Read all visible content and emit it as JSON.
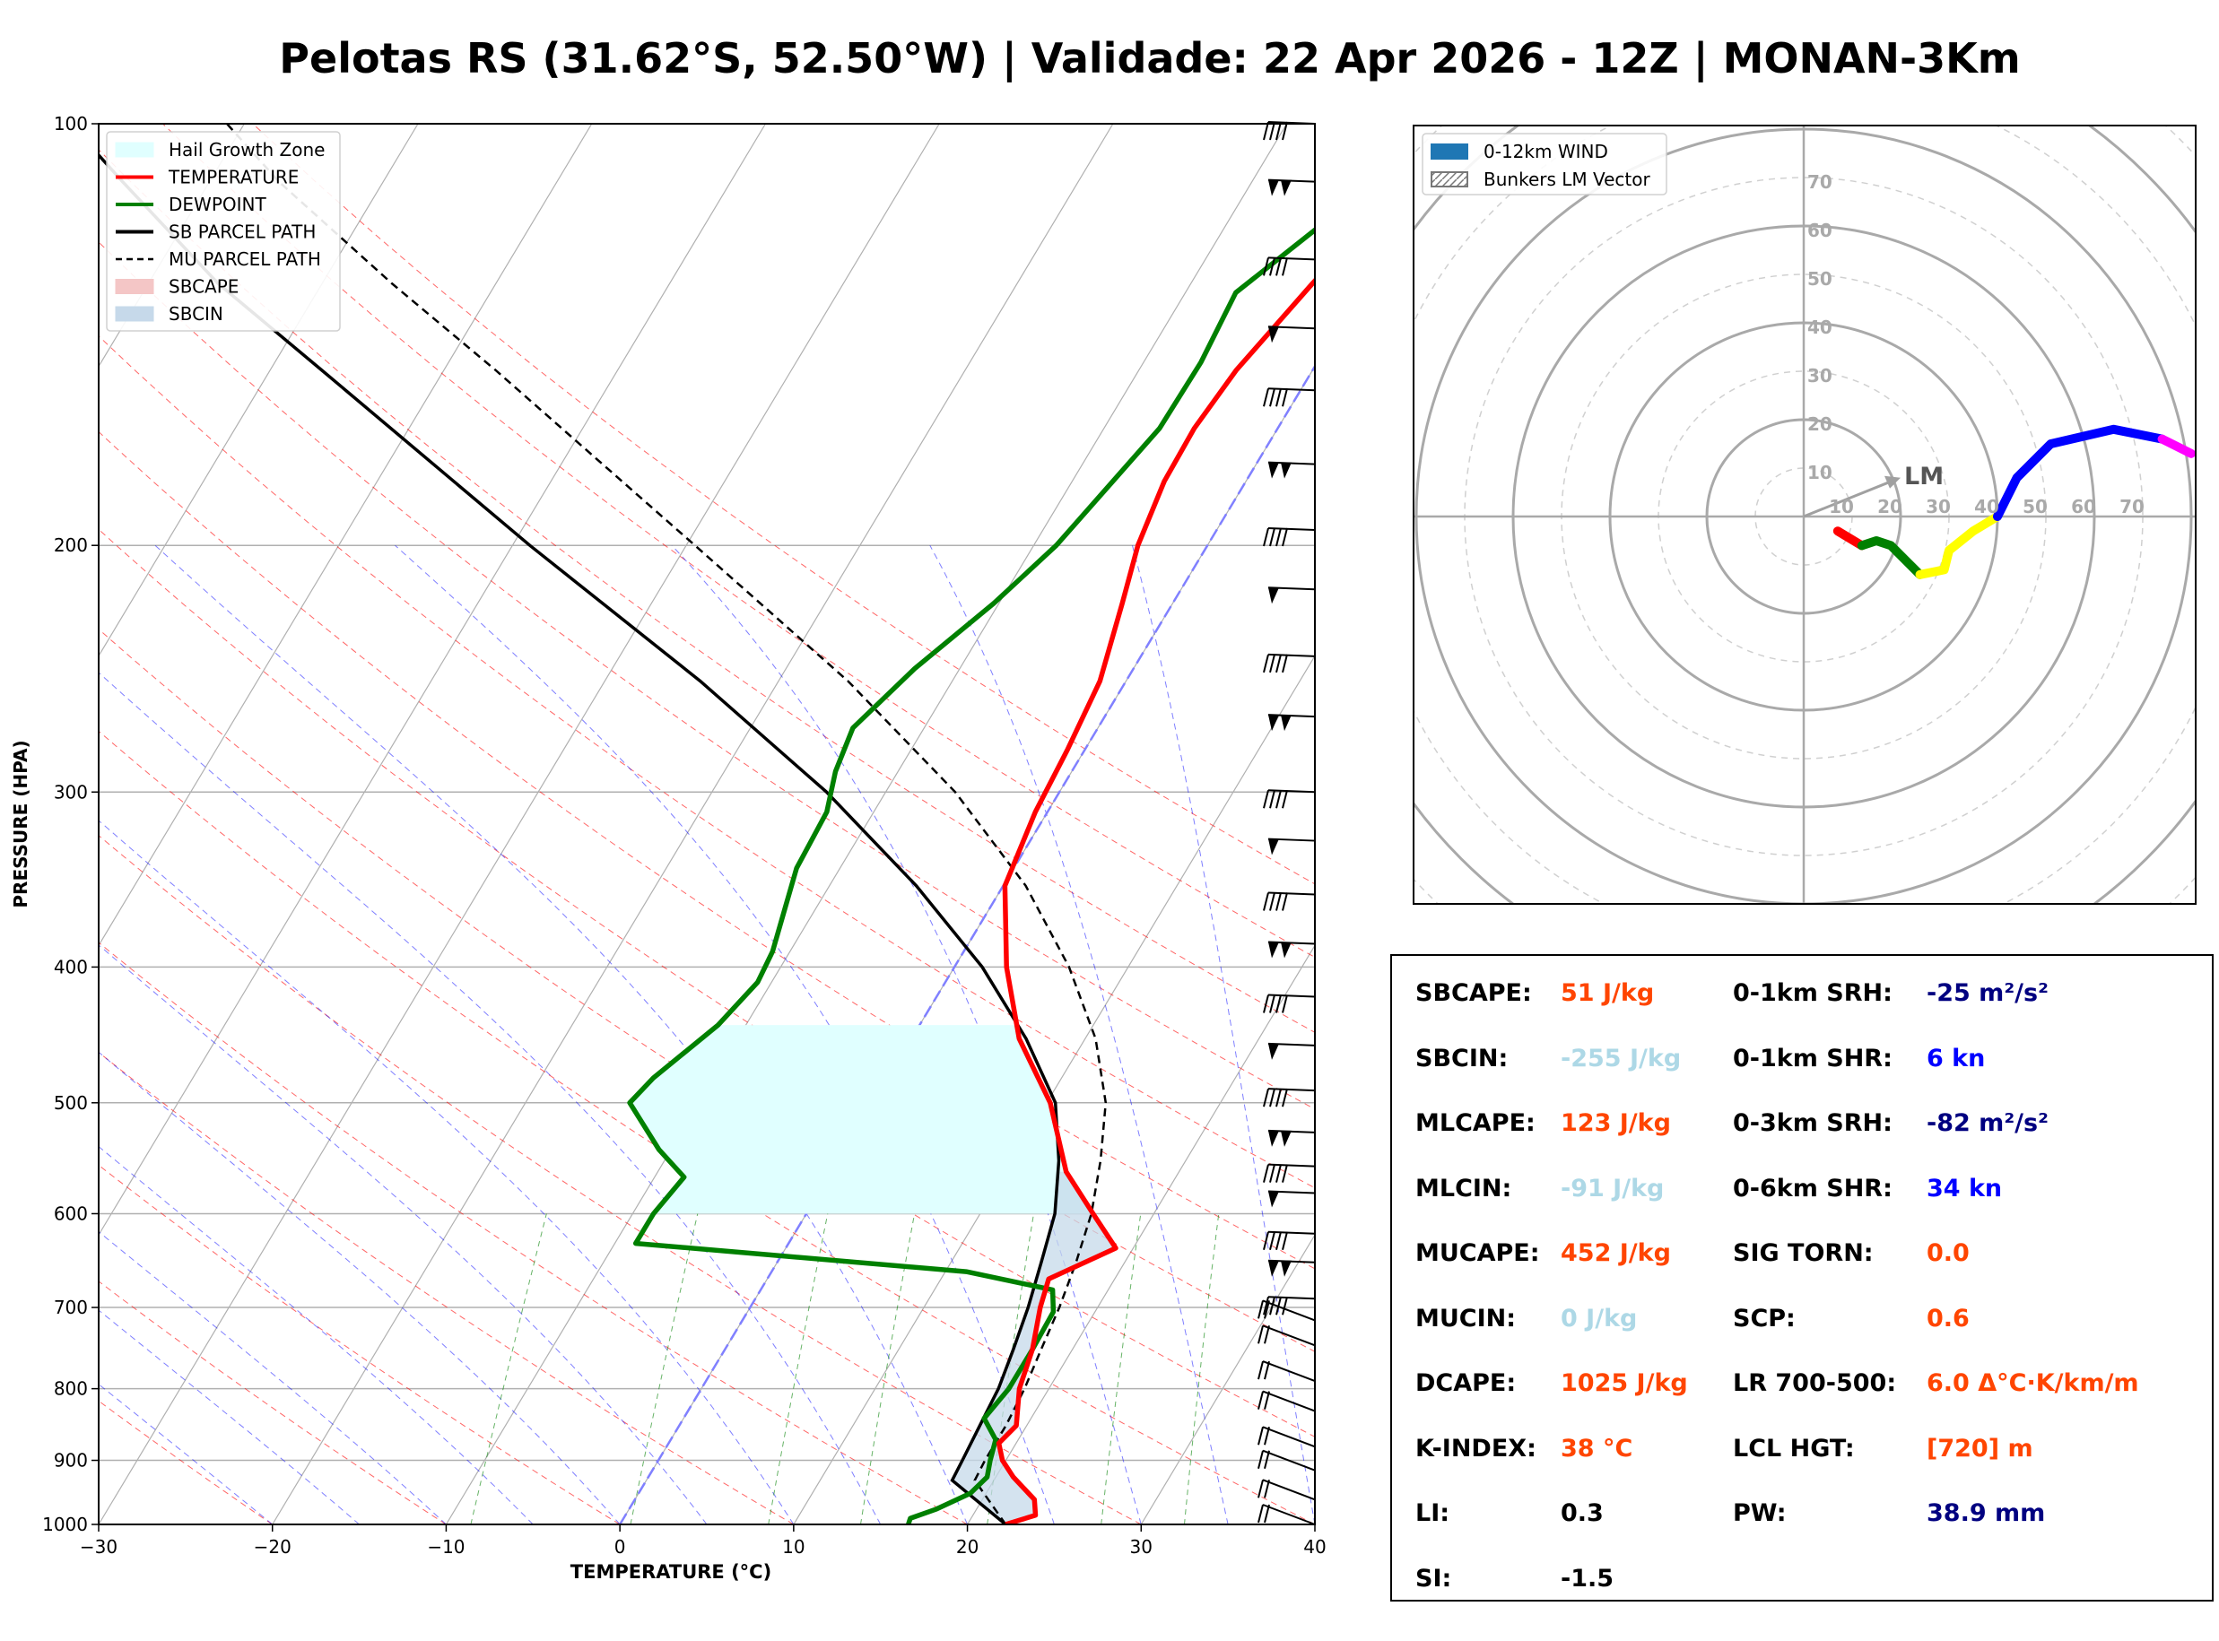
{
  "title": "Pelotas RS (31.62°S, 52.50°W) | Validade: 22 Apr 2026 - 12Z | MONAN-3Km",
  "skewt": {
    "xlabel": "TEMPERATURE (°C)",
    "ylabel": "PRESSURE (HPA)",
    "x_ticks": [
      "−30",
      "−20",
      "−10",
      "0",
      "10",
      "20",
      "30",
      "40"
    ],
    "y_ticks": [
      "100",
      "200",
      "300",
      "400",
      "500",
      "600",
      "700",
      "800",
      "900",
      "1000"
    ],
    "legend": [
      {
        "label": "Hail Growth Zone",
        "color": "#e0ffff",
        "kind": "patch"
      },
      {
        "label": "TEMPERATURE",
        "color": "#ff0000",
        "kind": "line"
      },
      {
        "label": "DEWPOINT",
        "color": "#008000",
        "kind": "line"
      },
      {
        "label": "SB PARCEL PATH",
        "color": "#000000",
        "kind": "line"
      },
      {
        "label": "MU PARCEL PATH",
        "color": "#000000",
        "kind": "dashed"
      },
      {
        "label": "SBCAPE",
        "color": "#f4c6c6",
        "kind": "patch"
      },
      {
        "label": "SBCIN",
        "color": "#c6d9ea",
        "kind": "patch"
      }
    ]
  },
  "hodograph": {
    "legend": [
      {
        "label": "0-12km WIND",
        "color": "#1f77b4",
        "kind": "patch"
      },
      {
        "label": "Bunkers LM Vector",
        "color": "#a0a0a0",
        "kind": "hatch"
      }
    ],
    "ring_labels_v": [
      "10",
      "20",
      "30",
      "40",
      "50",
      "60",
      "70"
    ],
    "ring_labels_h": [
      "10",
      "20",
      "30",
      "40",
      "50",
      "60",
      "70"
    ],
    "lm_label": "LM"
  },
  "parameters": {
    "left": [
      {
        "label": "SBCAPE:",
        "value": "51 J/kg",
        "color": "#ff4500"
      },
      {
        "label": "SBCIN:",
        "value": "-255 J/kg",
        "color": "#add8e6"
      },
      {
        "label": "MLCAPE:",
        "value": "123 J/kg",
        "color": "#ff4500"
      },
      {
        "label": "MLCIN:",
        "value": "-91 J/kg",
        "color": "#add8e6"
      },
      {
        "label": "MUCAPE:",
        "value": "452 J/kg",
        "color": "#ff4500"
      },
      {
        "label": "MUCIN:",
        "value": "0 J/kg",
        "color": "#add8e6"
      },
      {
        "label": "DCAPE:",
        "value": "1025 J/kg",
        "color": "#ff4500"
      },
      {
        "label": "K-INDEX:",
        "value": "38 °C",
        "color": "#ff4500"
      },
      {
        "label": "LI:",
        "value": "0.3",
        "color": "#000000"
      },
      {
        "label": "SI:",
        "value": "-1.5",
        "color": "#000000"
      }
    ],
    "right": [
      {
        "label": "0-1km SRH:",
        "value": "-25 m²/s²",
        "color": "#000080"
      },
      {
        "label": "0-1km SHR:",
        "value": "6 kn",
        "color": "#0000ff"
      },
      {
        "label": "0-3km SRH:",
        "value": "-82 m²/s²",
        "color": "#000080"
      },
      {
        "label": "0-6km SHR:",
        "value": "34 kn",
        "color": "#0000ff"
      },
      {
        "label": "SIG TORN:",
        "value": "0.0",
        "color": "#ff4500"
      },
      {
        "label": "SCP:",
        "value": "0.6",
        "color": "#ff4500"
      },
      {
        "label": "LR 700-500:",
        "value": "6.0 Δ°C·K/km/m",
        "color": "#ff4500"
      },
      {
        "label": "LCL HGT:",
        "value": "[720] m",
        "color": "#ff4500"
      },
      {
        "label": "PW:",
        "value": "38.9 mm",
        "color": "#000080"
      }
    ]
  },
  "chart_data": [
    {
      "type": "line",
      "subtype": "skew-t log-p",
      "xlabel": "TEMPERATURE (°C)",
      "ylabel": "PRESSURE (HPA)",
      "xlim": [
        -30,
        40
      ],
      "ylim": [
        1000,
        100
      ],
      "y_scale": "log",
      "grid": true,
      "legend_position": "upper-left",
      "series": [
        {
          "name": "TEMPERATURE",
          "color": "#ff0000",
          "points": [
            [
              1000,
              22.2
            ],
            [
              985,
              23.6
            ],
            [
              960,
              23.0
            ],
            [
              925,
              21.0
            ],
            [
              900,
              19.8
            ],
            [
              875,
              19.0
            ],
            [
              850,
              19.4
            ],
            [
              800,
              18.3
            ],
            [
              750,
              17.7
            ],
            [
              700,
              16.7
            ],
            [
              668,
              16.2
            ],
            [
              635,
              19.0
            ],
            [
              600,
              16.5
            ],
            [
              560,
              13.5
            ],
            [
              500,
              10.2
            ],
            [
              450,
              6.2
            ],
            [
              400,
              3.0
            ],
            [
              350,
              0.1
            ],
            [
              310,
              -0.7
            ],
            [
              280,
              -1.0
            ],
            [
              250,
              -1.5
            ],
            [
              220,
              -2.9
            ],
            [
              200,
              -4.0
            ],
            [
              180,
              -4.7
            ],
            [
              165,
              -4.8
            ],
            [
              150,
              -4.4
            ],
            [
              130,
              -3.0
            ],
            [
              115,
              -1.6
            ],
            [
              100,
              0.0
            ]
          ]
        },
        {
          "name": "DEWPOINT",
          "color": "#008000",
          "points": [
            [
              1000,
              16.6
            ],
            [
              990,
              16.5
            ],
            [
              975,
              17.7
            ],
            [
              950,
              19.1
            ],
            [
              925,
              19.5
            ],
            [
              900,
              19.1
            ],
            [
              870,
              18.7
            ],
            [
              840,
              17.3
            ],
            [
              800,
              17.7
            ],
            [
              750,
              17.7
            ],
            [
              705,
              17.6
            ],
            [
              680,
              16.8
            ],
            [
              660,
              11.2
            ],
            [
              630,
              -8.8
            ],
            [
              600,
              -8.8
            ],
            [
              565,
              -8.3
            ],
            [
              540,
              -10.7
            ],
            [
              500,
              -14.0
            ],
            [
              480,
              -13.5
            ],
            [
              440,
              -11.6
            ],
            [
              410,
              -10.8
            ],
            [
              390,
              -11.0
            ],
            [
              340,
              -12.5
            ],
            [
              310,
              -12.7
            ],
            [
              290,
              -13.6
            ],
            [
              270,
              -14.1
            ],
            [
              245,
              -12.6
            ],
            [
              220,
              -10.3
            ],
            [
              200,
              -8.7
            ],
            [
              165,
              -6.8
            ],
            [
              148,
              -6.7
            ],
            [
              132,
              -7.1
            ],
            [
              118,
              -4.5
            ],
            [
              100,
              1.0
            ]
          ]
        },
        {
          "name": "SB PARCEL PATH",
          "color": "#000000",
          "style": "solid",
          "points": [
            [
              1000,
              22.2
            ],
            [
              930,
              17.6
            ],
            [
              900,
              17.5
            ],
            [
              850,
              17.3
            ],
            [
              800,
              17.1
            ],
            [
              750,
              16.6
            ],
            [
              700,
              16.0
            ],
            [
              650,
              15.2
            ],
            [
              600,
              14.3
            ],
            [
              550,
              12.7
            ],
            [
              500,
              10.5
            ],
            [
              450,
              6.6
            ],
            [
              400,
              1.6
            ],
            [
              350,
              -5.0
            ],
            [
              300,
              -13.4
            ],
            [
              250,
              -24.5
            ],
            [
              200,
              -39.0
            ],
            [
              150,
              -57.0
            ],
            [
              130,
              -66.0
            ],
            [
              110,
              -75.0
            ],
            [
              100,
              -80.0
            ]
          ]
        },
        {
          "name": "MU PARCEL PATH",
          "color": "#000000",
          "style": "dashed",
          "points": [
            [
              1000,
              22.2
            ],
            [
              930,
              18.9
            ],
            [
              900,
              18.8
            ],
            [
              850,
              18.8
            ],
            [
              800,
              18.6
            ],
            [
              750,
              18.2
            ],
            [
              700,
              17.8
            ],
            [
              650,
              17.2
            ],
            [
              600,
              16.4
            ],
            [
              550,
              15.1
            ],
            [
              500,
              13.4
            ],
            [
              450,
              10.6
            ],
            [
              400,
              6.6
            ],
            [
              350,
              1.3
            ],
            [
              300,
              -6.0
            ],
            [
              250,
              -16.0
            ],
            [
              200,
              -29.5
            ],
            [
              150,
              -47.0
            ],
            [
              130,
              -56.0
            ],
            [
              110,
              -66.0
            ],
            [
              100,
              -71.0
            ]
          ]
        }
      ],
      "hail_growth_zone_hpa": [
        440,
        600
      ],
      "barb_levels_hpa": [
        100,
        110,
        125,
        140,
        155,
        175,
        195,
        215,
        240,
        265,
        300,
        325,
        355,
        385,
        420,
        455,
        490,
        525,
        555,
        580,
        620,
        650,
        690,
        715,
        745,
        790,
        830,
        880,
        915,
        960,
        1000
      ]
    },
    {
      "type": "line",
      "subtype": "hodograph",
      "units": "kn",
      "ring_max": 80,
      "series": [
        {
          "name": "0-1km",
          "color": "#ff0000",
          "points": [
            [
              7,
              -3
            ],
            [
              12,
              -6
            ]
          ]
        },
        {
          "name": "1-3km",
          "color": "#008000",
          "points": [
            [
              12,
              -6
            ],
            [
              15,
              -5
            ],
            [
              18,
              -6
            ],
            [
              21,
              -9
            ],
            [
              24,
              -12
            ]
          ]
        },
        {
          "name": "3-6km",
          "color": "#ffff00",
          "points": [
            [
              24,
              -12
            ],
            [
              29,
              -11
            ],
            [
              30,
              -7
            ],
            [
              35,
              -3
            ],
            [
              40,
              0
            ]
          ]
        },
        {
          "name": "6-9km",
          "color": "#0000ff",
          "points": [
            [
              40,
              0
            ],
            [
              44,
              8
            ],
            [
              51,
              15
            ],
            [
              64,
              18
            ],
            [
              74,
              16
            ]
          ]
        },
        {
          "name": "9-12km",
          "color": "#ff00ff",
          "points": [
            [
              74,
              16
            ],
            [
              80,
              13
            ]
          ]
        }
      ],
      "bunkers_lm": [
        20,
        8
      ]
    }
  ]
}
